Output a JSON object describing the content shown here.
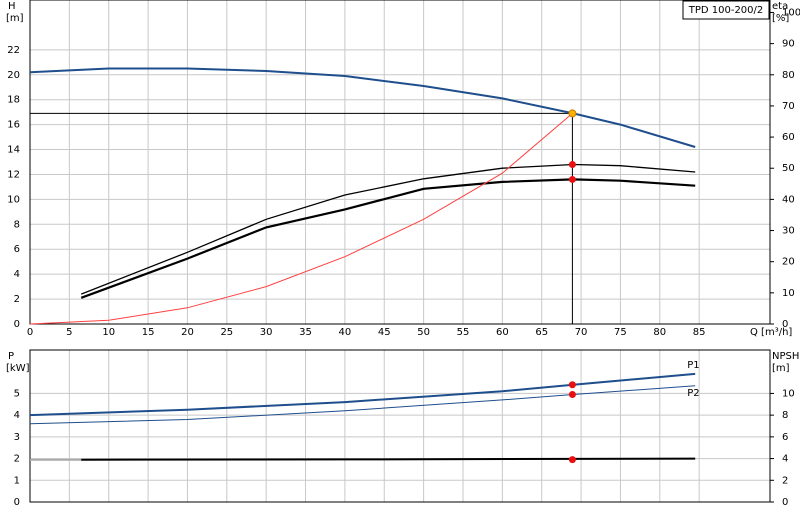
{
  "chart_data": [
    {
      "type": "line",
      "title": "TPD 100-200/2",
      "xlabel": "Q [m³/h]",
      "ylabel": "H",
      "yunit": "[m]",
      "y2label": "eta",
      "y2unit": "[%]",
      "xlim": [
        0,
        94
      ],
      "xticks": [
        0,
        5,
        10,
        15,
        20,
        25,
        30,
        35,
        40,
        45,
        50,
        55,
        60,
        65,
        70,
        75,
        80,
        85
      ],
      "xtick_labels": true,
      "ylim": [
        0,
        26
      ],
      "yticks": [
        0,
        2,
        4,
        6,
        8,
        10,
        12,
        14,
        16,
        18,
        20,
        22
      ],
      "y2lim": [
        0,
        104
      ],
      "y2ticks": [
        0,
        10,
        20,
        30,
        40,
        50,
        60,
        70,
        80,
        90,
        100
      ],
      "grid": true,
      "series": [
        {
          "color": "#1f4e8c",
          "width": 2,
          "x": [
            0,
            10,
            20,
            30,
            40,
            50,
            60,
            69,
            75,
            84.5
          ],
          "values": [
            20.2,
            20.5,
            20.5,
            20.3,
            19.9,
            19.1,
            18.1,
            16.9,
            16,
            14.2
          ]
        },
        {
          "color": "#000000",
          "width": 1.3,
          "axis": "y2",
          "x": [
            6.5,
            20,
            30,
            40,
            50,
            60,
            69,
            75,
            84.5
          ],
          "values": [
            9.6,
            23,
            33.6,
            41.4,
            46.6,
            50,
            51.2,
            50.8,
            48.8
          ]
        },
        {
          "color": "#000000",
          "width": 2.2,
          "axis": "y2",
          "x": [
            6.5,
            20,
            30,
            40,
            50,
            60,
            69,
            75,
            84.5
          ],
          "values": [
            8.4,
            21,
            31,
            36.8,
            43.4,
            45.6,
            46.4,
            46,
            44.4
          ]
        },
        {
          "color": "#ff4040",
          "width": 1,
          "x": [
            0,
            10,
            20,
            30,
            40,
            50,
            60,
            68.9
          ],
          "values": [
            0,
            0.3,
            1.3,
            3,
            5.4,
            8.4,
            12.1,
            16.9
          ]
        }
      ],
      "markers": [
        {
          "x": 68.9,
          "y": 16.9,
          "color": "#ffb000",
          "crosshair": true
        },
        {
          "x": 68.9,
          "y": 51.2,
          "axis": "y2",
          "color": "#e81010"
        },
        {
          "x": 68.9,
          "y": 46.4,
          "axis": "y2",
          "color": "#e81010"
        }
      ]
    },
    {
      "type": "line",
      "ylabel": "P",
      "yunit": "[kW]",
      "y2label": "NPSH",
      "y2unit": "[m]",
      "xlim": [
        0,
        94
      ],
      "xticks": [
        0,
        5,
        10,
        15,
        20,
        25,
        30,
        35,
        40,
        45,
        50,
        55,
        60,
        65,
        70,
        75,
        80,
        85
      ],
      "xtick_labels": false,
      "ylim": [
        0,
        7
      ],
      "yticks": [
        0,
        1,
        2,
        3,
        4,
        5
      ],
      "y2lim": [
        0,
        14
      ],
      "y2ticks": [
        0,
        2,
        4,
        6,
        8,
        10
      ],
      "grid": true,
      "series": [
        {
          "name": "P1",
          "color": "#1f4e8c",
          "width": 2,
          "x": [
            0,
            20,
            40,
            60,
            69,
            84.5
          ],
          "values": [
            4.0,
            4.25,
            4.6,
            5.1,
            5.4,
            5.9
          ]
        },
        {
          "name": "P2",
          "color": "#1f4e8c",
          "width": 1,
          "x": [
            0,
            20,
            40,
            60,
            69,
            84.5
          ],
          "values": [
            3.6,
            3.8,
            4.2,
            4.7,
            4.95,
            5.35
          ]
        },
        {
          "color": "#aaaaaa",
          "width": 2,
          "axis": "y2",
          "x": [
            0,
            6.5
          ],
          "values": [
            3.9,
            3.9
          ]
        },
        {
          "color": "#000000",
          "width": 2,
          "axis": "y2",
          "x": [
            6.5,
            40,
            84.5
          ],
          "values": [
            3.9,
            3.92,
            4.0
          ]
        }
      ],
      "markers": [
        {
          "x": 68.9,
          "y": 5.4,
          "color": "#e81010"
        },
        {
          "x": 68.9,
          "y": 4.95,
          "color": "#e81010"
        },
        {
          "x": 68.9,
          "y": 3.9,
          "axis": "y2",
          "color": "#e81010"
        }
      ]
    }
  ]
}
